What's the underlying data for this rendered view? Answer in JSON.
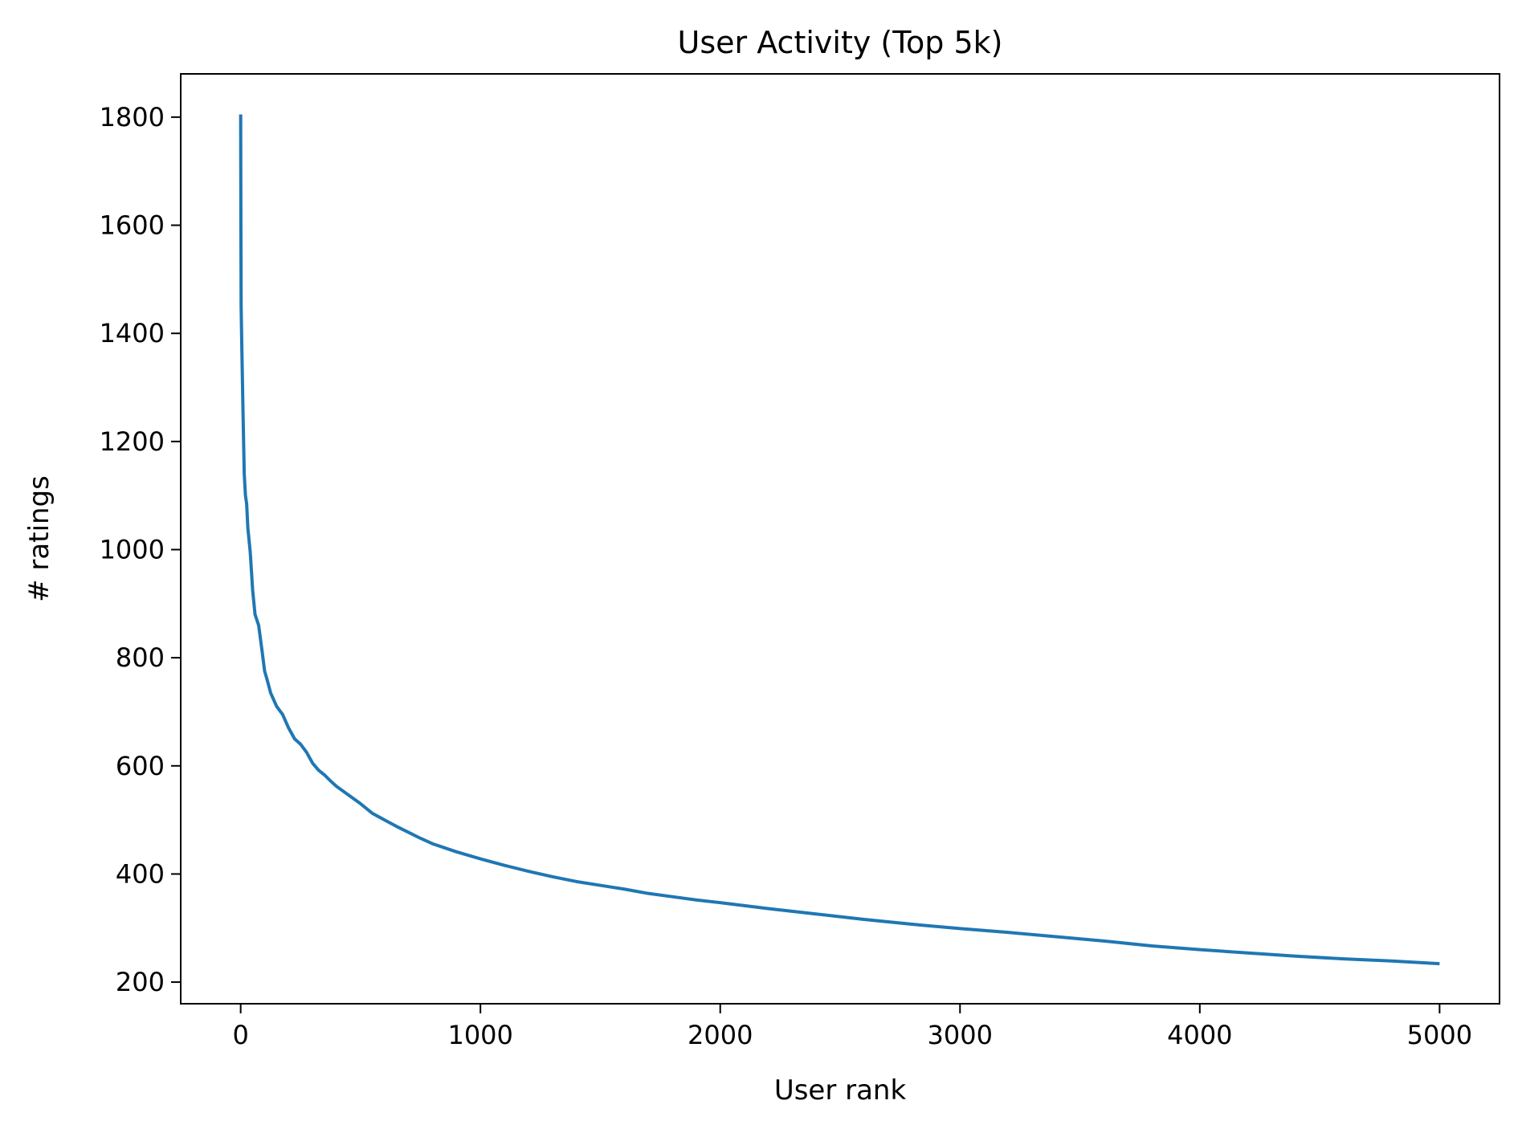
{
  "chart_data": {
    "type": "line",
    "title": "User Activity (Top 5k)",
    "xlabel": "User rank",
    "ylabel": "# ratings",
    "xlim": [
      -250,
      5250
    ],
    "ylim": [
      160,
      1880
    ],
    "x_ticks": [
      0,
      1000,
      2000,
      3000,
      4000,
      5000
    ],
    "x_tick_labels": [
      "0",
      "1000",
      "2000",
      "3000",
      "4000",
      "5000"
    ],
    "y_ticks": [
      200,
      400,
      600,
      800,
      1000,
      1200,
      1400,
      1600,
      1800
    ],
    "y_tick_labels": [
      "200",
      "400",
      "600",
      "800",
      "1000",
      "1200",
      "1400",
      "1600",
      "1800"
    ],
    "grid": false,
    "legend": "none",
    "series": [
      {
        "color": "#1f77b4",
        "x": [
          0,
          1,
          2,
          5,
          10,
          15,
          20,
          25,
          30,
          40,
          50,
          60,
          75,
          90,
          100,
          110,
          125,
          150,
          175,
          200,
          225,
          250,
          275,
          300,
          325,
          350,
          375,
          400,
          450,
          500,
          550,
          600,
          650,
          700,
          750,
          800,
          900,
          1000,
          1100,
          1200,
          1300,
          1400,
          1500,
          1600,
          1700,
          1800,
          1900,
          2000,
          2200,
          2400,
          2600,
          2800,
          3000,
          3200,
          3400,
          3600,
          3800,
          4000,
          4200,
          4400,
          4600,
          4800,
          5000
        ],
        "y": [
          1805,
          1600,
          1450,
          1370,
          1250,
          1140,
          1100,
          1085,
          1040,
          995,
          925,
          880,
          860,
          810,
          775,
          760,
          735,
          710,
          695,
          670,
          650,
          640,
          625,
          605,
          592,
          583,
          572,
          562,
          546,
          530,
          512,
          500,
          488,
          477,
          466,
          456,
          441,
          428,
          416,
          405,
          395,
          386,
          379,
          372,
          364,
          358,
          352,
          347,
          336,
          326,
          316,
          307,
          299,
          292,
          284,
          276,
          267,
          260,
          254,
          248,
          243,
          239,
          234
        ]
      }
    ]
  }
}
